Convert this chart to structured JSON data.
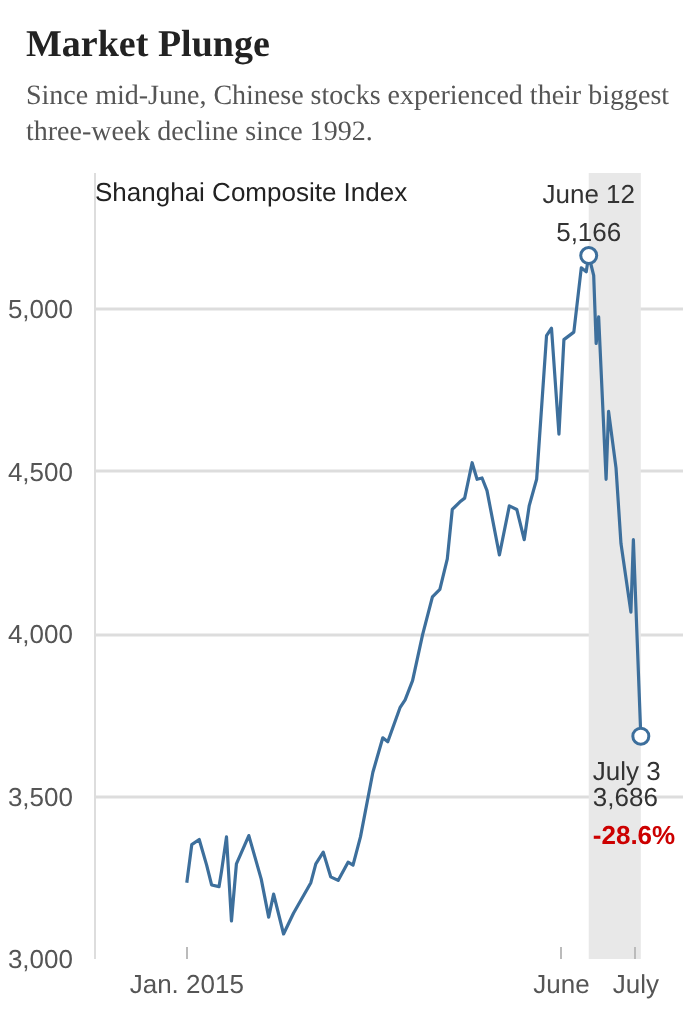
{
  "chart_data": {
    "type": "line",
    "title": "Market Plunge",
    "subtitle": "Since mid-June, Chinese stocks experienced their biggest three-week decline since 1992.",
    "ylabel": "Shanghai Composite Index",
    "series": [
      {
        "color": "#3d6f9c",
        "x": [
          "2015-01-01",
          "2015-01-03",
          "2015-01-06",
          "2015-01-09",
          "2015-01-11",
          "2015-01-14",
          "2015-01-15",
          "2015-01-17",
          "2015-01-19",
          "2015-01-21",
          "2015-01-26",
          "2015-01-31",
          "2015-02-03",
          "2015-02-05",
          "2015-02-09",
          "2015-02-13",
          "2015-02-20",
          "2015-02-22",
          "2015-02-25",
          "2015-02-28",
          "2015-03-03",
          "2015-03-07",
          "2015-03-09",
          "2015-03-12",
          "2015-03-17",
          "2015-03-21",
          "2015-03-23",
          "2015-03-28",
          "2015-03-30",
          "2015-04-02",
          "2015-04-06",
          "2015-04-10",
          "2015-04-13",
          "2015-04-16",
          "2015-04-18",
          "2015-04-21",
          "2015-04-23",
          "2015-04-26",
          "2015-04-28",
          "2015-04-30",
          "2015-05-02",
          "2015-05-07",
          "2015-05-11",
          "2015-05-14",
          "2015-05-17",
          "2015-05-19",
          "2015-05-22",
          "2015-05-26",
          "2015-05-28",
          "2015-05-31",
          "2015-06-02",
          "2015-06-06",
          "2015-06-09",
          "2015-06-11",
          "2015-06-12",
          "2015-06-14",
          "2015-06-15",
          "2015-06-16",
          "2015-06-19",
          "2015-06-20",
          "2015-06-23",
          "2015-06-25",
          "2015-06-29",
          "2015-06-30",
          "2015-07-03"
        ],
        "values": [
          3235,
          3352,
          3368,
          3289,
          3228,
          3223,
          3270,
          3376,
          3117,
          3293,
          3380,
          3246,
          3129,
          3200,
          3077,
          3141,
          3235,
          3293,
          3329,
          3253,
          3242,
          3298,
          3289,
          3376,
          3575,
          3681,
          3669,
          3775,
          3798,
          3857,
          3997,
          4115,
          4138,
          4232,
          4384,
          4407,
          4419,
          4528,
          4477,
          4481,
          4442,
          4244,
          4395,
          4384,
          4291,
          4395,
          4477,
          4919,
          4942,
          4616,
          4907,
          4930,
          5128,
          5116,
          5166,
          5105,
          4895,
          4977,
          4477,
          4686,
          4512,
          4279,
          4068,
          4291,
          3686
        ]
      }
    ],
    "xlim": [
      "2014-11-25",
      "2015-07-20"
    ],
    "xticks": [
      {
        "value": "2015-01-01",
        "label": "Jan. 2015"
      },
      {
        "value": "2015-06-01",
        "label": "June"
      },
      {
        "value": "2015-07-01",
        "label": "July"
      }
    ],
    "ylim": [
      3000,
      5420
    ],
    "yticks": [
      {
        "value": 3000,
        "label": "3,000"
      },
      {
        "value": 3500,
        "label": "3,500"
      },
      {
        "value": 4000,
        "label": "4,000"
      },
      {
        "value": 4500,
        "label": "4,500"
      },
      {
        "value": 5000,
        "label": "5,000"
      }
    ],
    "grid": "y",
    "bands": [
      {
        "axis": "x",
        "from": "2015-06-12",
        "to": "2015-07-03",
        "color": "#e8e8e8"
      }
    ],
    "annotations": [
      {
        "text": "June 12",
        "x": "2015-06-12",
        "y": 5166
      },
      {
        "text": "5,166",
        "x": "2015-06-12",
        "y": 5166
      },
      {
        "text": "July 3",
        "x": "2015-07-03",
        "y": 3686
      },
      {
        "text": "3,686",
        "x": "2015-07-03",
        "y": 3686
      },
      "-28.6%"
    ]
  }
}
